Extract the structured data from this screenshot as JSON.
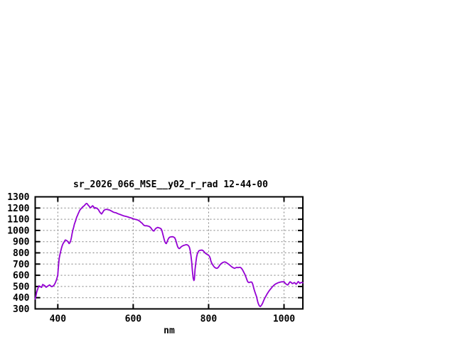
{
  "window": {
    "background": "#FFFFFF"
  },
  "colors": {
    "line": "#9400D3",
    "grid": "#808080",
    "border": "#000000",
    "text": "#000000",
    "background": "#FFFFFF"
  },
  "chart_data": {
    "type": "line",
    "title": "sr_2026_066_MSE__y02_r_rad 12-44-00",
    "xlabel": "nm",
    "ylabel": "",
    "xlim": [
      340,
      1050
    ],
    "ylim": [
      300,
      1300
    ],
    "x_ticks": [
      400,
      600,
      800,
      1000
    ],
    "y_ticks": [
      300,
      400,
      500,
      600,
      700,
      800,
      900,
      1000,
      1100,
      1200,
      1300
    ],
    "grid": true,
    "grid_style": "dashed",
    "legend_position": "none",
    "series": [
      {
        "name": "sr_2026_066_MSE__y02_r_rad",
        "color": "#9400D3",
        "points": [
          [
            340,
            388
          ],
          [
            342,
            415
          ],
          [
            344,
            450
          ],
          [
            346,
            470
          ],
          [
            348,
            490
          ],
          [
            350,
            505
          ],
          [
            353,
            500
          ],
          [
            355,
            495
          ],
          [
            357,
            492
          ],
          [
            360,
            518
          ],
          [
            363,
            512
          ],
          [
            366,
            505
          ],
          [
            369,
            493
          ],
          [
            372,
            500
          ],
          [
            375,
            507
          ],
          [
            378,
            514
          ],
          [
            381,
            506
          ],
          [
            384,
            498
          ],
          [
            387,
            503
          ],
          [
            390,
            512
          ],
          [
            393,
            530
          ],
          [
            396,
            555
          ],
          [
            398,
            578
          ],
          [
            400,
            605
          ],
          [
            401,
            650
          ],
          [
            402,
            690
          ],
          [
            403,
            730
          ],
          [
            404,
            755
          ],
          [
            406,
            790
          ],
          [
            408,
            820
          ],
          [
            410,
            845
          ],
          [
            412,
            868
          ],
          [
            414,
            882
          ],
          [
            416,
            893
          ],
          [
            418,
            905
          ],
          [
            420,
            915
          ],
          [
            422,
            912
          ],
          [
            424,
            908
          ],
          [
            426,
            903
          ],
          [
            428,
            893
          ],
          [
            430,
            883
          ],
          [
            432,
            890
          ],
          [
            434,
            906
          ],
          [
            436,
            935
          ],
          [
            438,
            975
          ],
          [
            440,
            1003
          ],
          [
            442,
            1028
          ],
          [
            444,
            1055
          ],
          [
            446,
            1075
          ],
          [
            448,
            1095
          ],
          [
            450,
            1118
          ],
          [
            452,
            1132
          ],
          [
            454,
            1150
          ],
          [
            456,
            1163
          ],
          [
            458,
            1179
          ],
          [
            460,
            1188
          ],
          [
            462,
            1195
          ],
          [
            464,
            1203
          ],
          [
            466,
            1210
          ],
          [
            468,
            1216
          ],
          [
            470,
            1220
          ],
          [
            472,
            1228
          ],
          [
            474,
            1236
          ],
          [
            476,
            1241
          ],
          [
            478,
            1238
          ],
          [
            480,
            1228
          ],
          [
            482,
            1220
          ],
          [
            484,
            1212
          ],
          [
            486,
            1202
          ],
          [
            488,
            1206
          ],
          [
            490,
            1212
          ],
          [
            492,
            1220
          ],
          [
            494,
            1215
          ],
          [
            496,
            1207
          ],
          [
            498,
            1196
          ],
          [
            500,
            1203
          ],
          [
            502,
            1200
          ],
          [
            505,
            1194
          ],
          [
            508,
            1184
          ],
          [
            511,
            1165
          ],
          [
            514,
            1154
          ],
          [
            516,
            1147
          ],
          [
            519,
            1160
          ],
          [
            522,
            1178
          ],
          [
            525,
            1185
          ],
          [
            528,
            1188
          ],
          [
            531,
            1187
          ],
          [
            534,
            1185
          ],
          [
            538,
            1181
          ],
          [
            542,
            1174
          ],
          [
            546,
            1166
          ],
          [
            550,
            1160
          ],
          [
            554,
            1158
          ],
          [
            558,
            1152
          ],
          [
            562,
            1146
          ],
          [
            566,
            1142
          ],
          [
            570,
            1136
          ],
          [
            574,
            1131
          ],
          [
            578,
            1127
          ],
          [
            582,
            1124
          ],
          [
            586,
            1120
          ],
          [
            590,
            1116
          ],
          [
            594,
            1112
          ],
          [
            598,
            1107
          ],
          [
            602,
            1102
          ],
          [
            606,
            1098
          ],
          [
            610,
            1095
          ],
          [
            614,
            1090
          ],
          [
            618,
            1081
          ],
          [
            621,
            1071
          ],
          [
            624,
            1063
          ],
          [
            626,
            1054
          ],
          [
            628,
            1048
          ],
          [
            630,
            1043
          ],
          [
            633,
            1042
          ],
          [
            636,
            1042
          ],
          [
            639,
            1039
          ],
          [
            642,
            1036
          ],
          [
            645,
            1030
          ],
          [
            647,
            1022
          ],
          [
            649,
            1012
          ],
          [
            651,
            1003
          ],
          [
            653,
            997
          ],
          [
            655,
            995
          ],
          [
            657,
            1005
          ],
          [
            659,
            1015
          ],
          [
            662,
            1023
          ],
          [
            665,
            1027
          ],
          [
            668,
            1024
          ],
          [
            671,
            1020
          ],
          [
            674,
            1014
          ],
          [
            676,
            1000
          ],
          [
            678,
            975
          ],
          [
            680,
            948
          ],
          [
            682,
            920
          ],
          [
            684,
            900
          ],
          [
            686,
            886
          ],
          [
            688,
            883
          ],
          [
            690,
            900
          ],
          [
            692,
            918
          ],
          [
            694,
            930
          ],
          [
            696,
            938
          ],
          [
            698,
            941
          ],
          [
            701,
            943
          ],
          [
            704,
            944
          ],
          [
            707,
            942
          ],
          [
            710,
            935
          ],
          [
            712,
            920
          ],
          [
            714,
            900
          ],
          [
            716,
            875
          ],
          [
            718,
            855
          ],
          [
            720,
            843
          ],
          [
            722,
            838
          ],
          [
            724,
            842
          ],
          [
            726,
            850
          ],
          [
            729,
            858
          ],
          [
            732,
            864
          ],
          [
            735,
            868
          ],
          [
            738,
            871
          ],
          [
            741,
            873
          ],
          [
            744,
            871
          ],
          [
            747,
            862
          ],
          [
            749,
            850
          ],
          [
            751,
            825
          ],
          [
            753,
            780
          ],
          [
            755,
            720
          ],
          [
            757,
            640
          ],
          [
            759,
            575
          ],
          [
            761,
            553
          ],
          [
            762,
            560
          ],
          [
            763,
            600
          ],
          [
            764,
            650
          ],
          [
            766,
            710
          ],
          [
            768,
            762
          ],
          [
            770,
            790
          ],
          [
            772,
            806
          ],
          [
            774,
            818
          ],
          [
            777,
            822
          ],
          [
            780,
            825
          ],
          [
            783,
            824
          ],
          [
            786,
            818
          ],
          [
            789,
            806
          ],
          [
            792,
            795
          ],
          [
            795,
            788
          ],
          [
            798,
            782
          ],
          [
            800,
            778
          ],
          [
            802,
            770
          ],
          [
            804,
            755
          ],
          [
            806,
            728
          ],
          [
            808,
            710
          ],
          [
            810,
            698
          ],
          [
            812,
            688
          ],
          [
            814,
            678
          ],
          [
            816,
            671
          ],
          [
            818,
            666
          ],
          [
            820,
            663
          ],
          [
            822,
            662
          ],
          [
            824,
            666
          ],
          [
            826,
            672
          ],
          [
            828,
            682
          ],
          [
            830,
            692
          ],
          [
            833,
            703
          ],
          [
            836,
            710
          ],
          [
            839,
            716
          ],
          [
            842,
            719
          ],
          [
            845,
            717
          ],
          [
            848,
            711
          ],
          [
            851,
            704
          ],
          [
            854,
            696
          ],
          [
            857,
            688
          ],
          [
            860,
            679
          ],
          [
            863,
            672
          ],
          [
            866,
            666
          ],
          [
            869,
            662
          ],
          [
            872,
            667
          ],
          [
            875,
            670
          ],
          [
            878,
            668
          ],
          [
            881,
            670
          ],
          [
            884,
            670
          ],
          [
            887,
            663
          ],
          [
            890,
            648
          ],
          [
            893,
            630
          ],
          [
            896,
            610
          ],
          [
            899,
            585
          ],
          [
            901,
            565
          ],
          [
            903,
            548
          ],
          [
            905,
            538
          ],
          [
            907,
            535
          ],
          [
            909,
            537
          ],
          [
            911,
            540
          ],
          [
            913,
            540
          ],
          [
            915,
            537
          ],
          [
            917,
            520
          ],
          [
            919,
            495
          ],
          [
            921,
            470
          ],
          [
            923,
            448
          ],
          [
            925,
            430
          ],
          [
            927,
            410
          ],
          [
            929,
            382
          ],
          [
            931,
            355
          ],
          [
            933,
            337
          ],
          [
            935,
            326
          ],
          [
            937,
            321
          ],
          [
            939,
            328
          ],
          [
            941,
            337
          ],
          [
            943,
            350
          ],
          [
            945,
            365
          ],
          [
            947,
            382
          ],
          [
            949,
            395
          ],
          [
            951,
            408
          ],
          [
            953,
            420
          ],
          [
            955,
            432
          ],
          [
            957,
            443
          ],
          [
            959,
            453
          ],
          [
            961,
            463
          ],
          [
            963,
            472
          ],
          [
            965,
            480
          ],
          [
            967,
            488
          ],
          [
            969,
            496
          ],
          [
            971,
            503
          ],
          [
            973,
            510
          ],
          [
            975,
            516
          ],
          [
            977,
            521
          ],
          [
            979,
            525
          ],
          [
            981,
            528
          ],
          [
            983,
            531
          ],
          [
            985,
            534
          ],
          [
            987,
            536
          ],
          [
            989,
            538
          ],
          [
            991,
            540
          ],
          [
            993,
            541
          ],
          [
            995,
            542
          ],
          [
            997,
            542
          ],
          [
            1000,
            543
          ],
          [
            1002,
            535
          ],
          [
            1004,
            526
          ],
          [
            1006,
            520
          ],
          [
            1008,
            516
          ],
          [
            1010,
            514
          ],
          [
            1012,
            522
          ],
          [
            1014,
            534
          ],
          [
            1016,
            542
          ],
          [
            1018,
            538
          ],
          [
            1020,
            532
          ],
          [
            1022,
            526
          ],
          [
            1024,
            528
          ],
          [
            1026,
            532
          ],
          [
            1028,
            535
          ],
          [
            1030,
            528
          ],
          [
            1032,
            520
          ],
          [
            1034,
            526
          ],
          [
            1036,
            537
          ],
          [
            1038,
            544
          ],
          [
            1040,
            536
          ],
          [
            1042,
            528
          ],
          [
            1044,
            532
          ],
          [
            1046,
            537
          ],
          [
            1048,
            535
          ],
          [
            1050,
            533
          ]
        ]
      }
    ]
  }
}
